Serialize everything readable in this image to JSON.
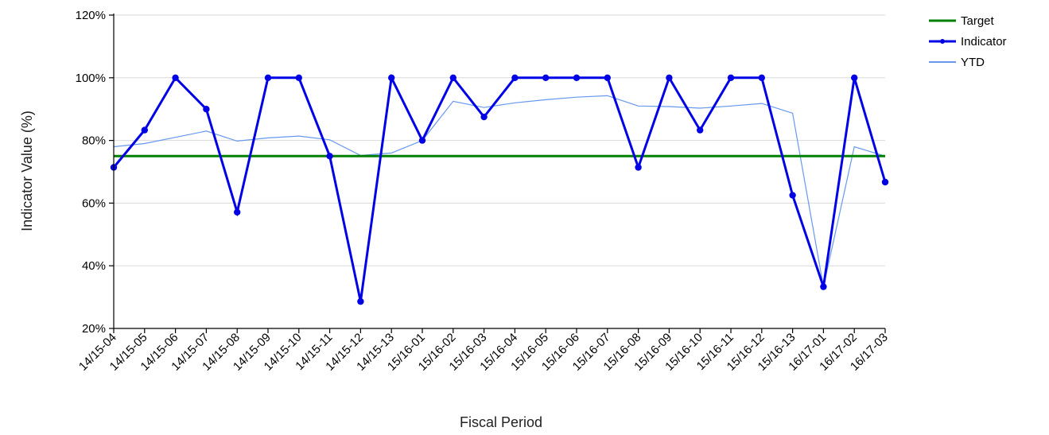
{
  "chart_data": {
    "type": "line",
    "xlabel": "Fiscal Period",
    "ylabel": "Indicator Value (%)",
    "ylim": [
      20,
      120
    ],
    "yticks": [
      20,
      40,
      60,
      80,
      100,
      120
    ],
    "ytick_suffix": "%",
    "grid": true,
    "legend_position": "top-right",
    "categories": [
      "14/15-04",
      "14/15-05",
      "14/15-06",
      "14/15-07",
      "14/15-08",
      "14/15-09",
      "14/15-10",
      "14/15-11",
      "14/15-12",
      "14/15-13",
      "15/16-01",
      "15/16-02",
      "15/16-03",
      "15/16-04",
      "15/16-05",
      "15/16-06",
      "15/16-07",
      "15/16-08",
      "15/16-09",
      "15/16-10",
      "15/16-11",
      "15/16-12",
      "15/16-13",
      "16/17-01",
      "16/17-02",
      "16/17-03"
    ],
    "series": [
      {
        "name": "Target",
        "color": "#008000",
        "markers": false,
        "values": [
          75,
          75,
          75,
          75,
          75,
          75,
          75,
          75,
          75,
          75,
          75,
          75,
          75,
          75,
          75,
          75,
          75,
          75,
          75,
          75,
          75,
          75,
          75,
          75,
          75,
          75
        ]
      },
      {
        "name": "Indicator",
        "color": "#0000e6",
        "markers": true,
        "values": [
          71.4,
          83.3,
          100,
          90,
          57.1,
          100,
          100,
          75,
          28.6,
          100,
          80,
          100,
          87.5,
          100,
          100,
          100,
          100,
          71.4,
          100,
          83.3,
          100,
          100,
          62.5,
          33.3,
          100,
          66.7
        ]
      },
      {
        "name": "YTD",
        "color": "#6699ee",
        "markers": false,
        "values": [
          78,
          79,
          81,
          83,
          79.8,
          80.8,
          81.4,
          80.2,
          75.2,
          76,
          80,
          92.5,
          90.5,
          92,
          93,
          93.8,
          94.3,
          91,
          90.8,
          90.3,
          91,
          91.8,
          88.7,
          33.3,
          78,
          75
        ]
      }
    ]
  }
}
